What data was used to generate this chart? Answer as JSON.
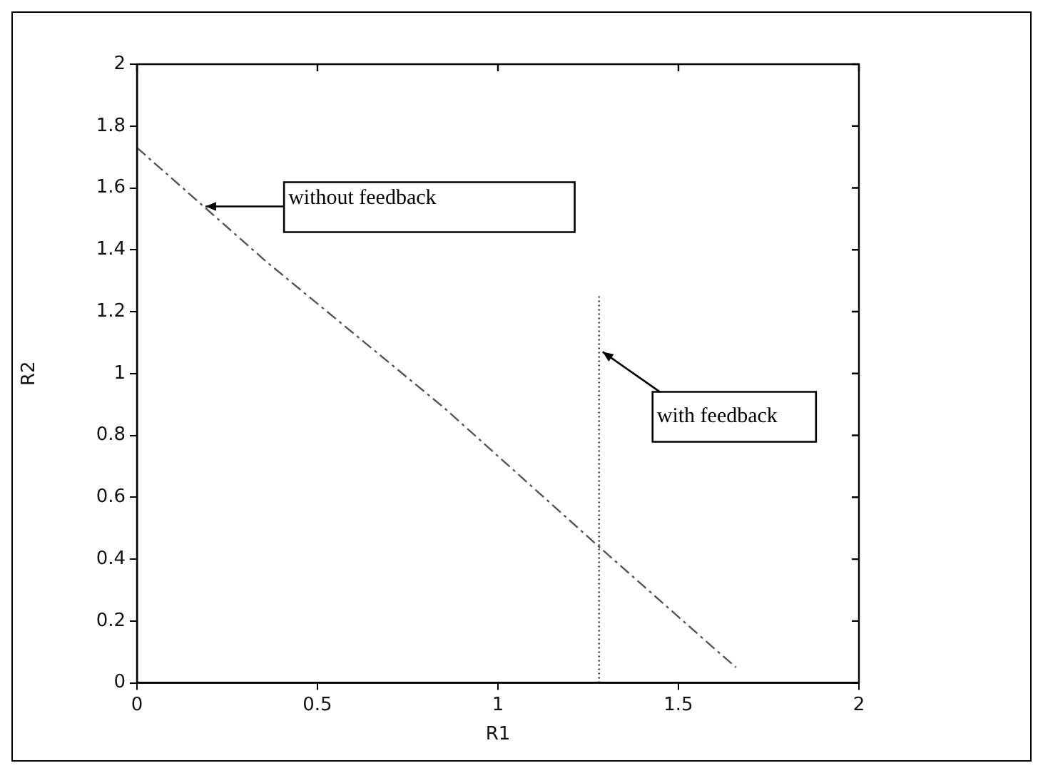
{
  "chart_data": {
    "type": "line",
    "xlabel": "R1",
    "ylabel": "R2",
    "xlim": [
      0,
      2
    ],
    "xticks": [
      0,
      0.5,
      1,
      1.5,
      2
    ],
    "ylim": [
      0,
      2
    ],
    "yticks": [
      0,
      0.2,
      0.4,
      0.6,
      0.8,
      1,
      1.2,
      1.4,
      1.6,
      1.8,
      2
    ],
    "grid": false,
    "legend": false,
    "marker": "none",
    "series": [
      {
        "color": "#555555",
        "line_style": "dashed",
        "x": [
          0,
          0.36,
          0.85,
          1.28,
          1.61,
          1.66
        ],
        "values": [
          1.73,
          1.36,
          0.89,
          0.44,
          0.1,
          0.05
        ]
      },
      {
        "color": "#333333",
        "line_style": "dotted",
        "x": [
          1.28,
          1.28
        ],
        "values": [
          0,
          1.25
        ]
      }
    ],
    "annotations": [
      {
        "text": "without feedback",
        "x": 0.19,
        "y": 1.54
      },
      {
        "text": "with feedback",
        "x": 1.29,
        "y": 1.07
      }
    ]
  }
}
